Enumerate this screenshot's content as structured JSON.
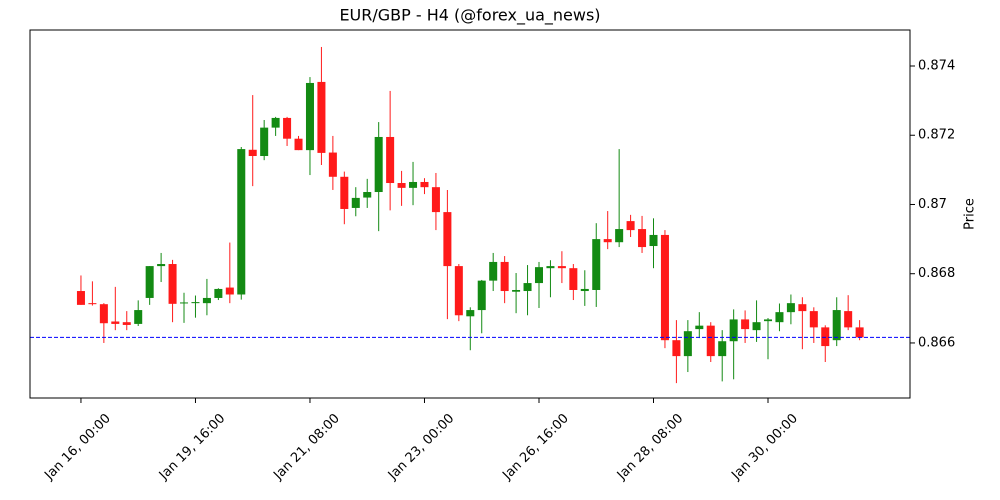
{
  "chart_data": {
    "type": "candlestick",
    "title": "EUR/GBP - H4 (@forex_ua_news)",
    "y_label": "Price",
    "up_color": "#138a13",
    "down_color": "#ff1a1a",
    "open": [
      0.8675,
      0.86715,
      0.86712,
      0.86662,
      0.8666,
      0.86655,
      0.8673,
      0.86822,
      0.86828,
      0.86715,
      0.86715,
      0.86715,
      0.8673,
      0.8676,
      0.8674,
      0.87158,
      0.8714,
      0.87222,
      0.8725,
      0.8719,
      0.87157,
      0.87354,
      0.8715,
      0.8708,
      0.8699,
      0.8702,
      0.87036,
      0.87195,
      0.87062,
      0.87048,
      0.87065,
      0.8705,
      0.86978,
      0.86822,
      0.86677,
      0.86695,
      0.8678,
      0.86834,
      0.86748,
      0.8675,
      0.86773,
      0.86816,
      0.86822,
      0.86816,
      0.8675,
      0.86753,
      0.869,
      0.86891,
      0.86952,
      0.86929,
      0.8688,
      0.86912,
      0.86608,
      0.86562,
      0.8664,
      0.8665,
      0.86562,
      0.86605,
      0.86668,
      0.86637,
      0.86663,
      0.8666,
      0.86689,
      0.86712,
      0.86692,
      0.86645,
      0.86608,
      0.86692,
      0.86645
    ],
    "high": [
      0.86795,
      0.86778,
      0.86715,
      0.86762,
      0.86692,
      0.86723,
      0.86822,
      0.8686,
      0.8684,
      0.86745,
      0.86737,
      0.86785,
      0.86758,
      0.8689,
      0.87166,
      0.87316,
      0.87244,
      0.87253,
      0.87253,
      0.87198,
      0.87368,
      0.87455,
      0.87198,
      0.87095,
      0.8705,
      0.87074,
      0.87238,
      0.87328,
      0.87097,
      0.87123,
      0.87076,
      0.87091,
      0.87042,
      0.86828,
      0.86703,
      0.86782,
      0.8686,
      0.86851,
      0.86802,
      0.86825,
      0.86834,
      0.86839,
      0.86865,
      0.86828,
      0.8681,
      0.86946,
      0.86981,
      0.8716,
      0.8697,
      0.86967,
      0.8696,
      0.86926,
      0.86666,
      0.86666,
      0.86689,
      0.8666,
      0.86637,
      0.86697,
      0.86694,
      0.86723,
      0.86672,
      0.86714,
      0.8674,
      0.86732,
      0.86703,
      0.86651,
      0.86732,
      0.86738,
      0.86666
    ],
    "low": [
      0.8671,
      0.86708,
      0.866,
      0.86637,
      0.86637,
      0.86649,
      0.8671,
      0.86776,
      0.8666,
      0.86658,
      0.86673,
      0.8668,
      0.86724,
      0.86715,
      0.86725,
      0.87053,
      0.87128,
      0.87198,
      0.87169,
      0.87157,
      0.87085,
      0.87114,
      0.87042,
      0.86943,
      0.86966,
      0.8699,
      0.86923,
      0.86983,
      0.86996,
      0.86998,
      0.8703,
      0.86926,
      0.86669,
      0.86663,
      0.86579,
      0.86628,
      0.8675,
      0.86715,
      0.86686,
      0.8668,
      0.86701,
      0.86732,
      0.86773,
      0.86724,
      0.86707,
      0.86704,
      0.86871,
      0.86877,
      0.86906,
      0.8686,
      0.86816,
      0.86585,
      0.86484,
      0.86516,
      0.86614,
      0.86545,
      0.86489,
      0.86495,
      0.866,
      0.86603,
      0.86553,
      0.86634,
      0.86654,
      0.86582,
      0.866,
      0.86545,
      0.86591,
      0.86637,
      0.86608
    ],
    "close": [
      0.8671,
      0.86712,
      0.86657,
      0.86655,
      0.86652,
      0.86695,
      0.86822,
      0.86828,
      0.86713,
      0.86717,
      0.86718,
      0.8673,
      0.86756,
      0.8674,
      0.8716,
      0.8714,
      0.87222,
      0.8725,
      0.8719,
      0.87157,
      0.87351,
      0.87149,
      0.8708,
      0.86987,
      0.87019,
      0.87036,
      0.87195,
      0.87062,
      0.87048,
      0.87065,
      0.8705,
      0.86978,
      0.86822,
      0.8668,
      0.86695,
      0.8678,
      0.86834,
      0.8675,
      0.86753,
      0.86773,
      0.86819,
      0.86822,
      0.86816,
      0.86753,
      0.86756,
      0.869,
      0.86891,
      0.86929,
      0.86926,
      0.86877,
      0.86912,
      0.86608,
      0.86562,
      0.86634,
      0.8665,
      0.86562,
      0.86605,
      0.86668,
      0.8664,
      0.8666,
      0.86668,
      0.86689,
      0.86715,
      0.86692,
      0.86645,
      0.86591,
      0.86695,
      0.86645,
      0.86616
    ],
    "xlim": [
      -4.45,
      72.4
    ],
    "xticks": [
      {
        "value": 0,
        "label": "Jan 16, 00:00"
      },
      {
        "value": 10,
        "label": "Jan 19, 16:00"
      },
      {
        "value": 20,
        "label": "Jan 21, 08:00"
      },
      {
        "value": 30,
        "label": "Jan 23, 00:00"
      },
      {
        "value": 40,
        "label": "Jan 26, 16:00"
      },
      {
        "value": 50,
        "label": "Jan 28, 08:00"
      },
      {
        "value": 60,
        "label": "Jan 30, 00:00"
      }
    ],
    "ylim": [
      0.86441,
      0.87504
    ],
    "yticks": [
      0.866,
      0.868,
      0.87,
      0.872,
      0.874
    ],
    "hline": {
      "value": 0.86616,
      "color": "#0000ff"
    }
  }
}
